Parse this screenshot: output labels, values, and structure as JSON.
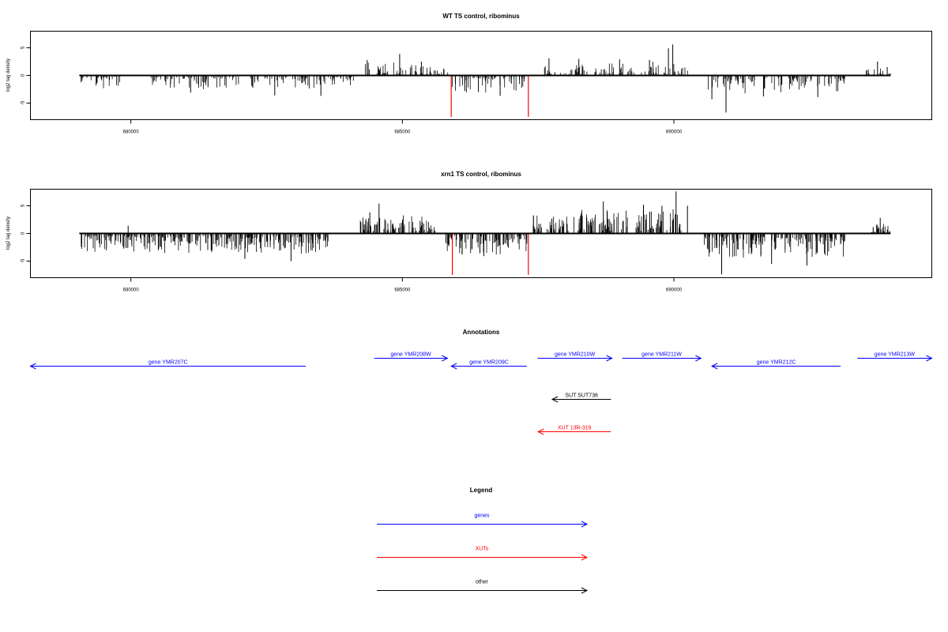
{
  "chart_data": [
    {
      "type": "bar",
      "title": "WT TS control, ribominus",
      "ylabel": "log2 tag density",
      "xlabel": "",
      "xlim": [
        678150,
        694750
      ],
      "ylim": [
        -8.0,
        8.0
      ],
      "xticks": [
        680000,
        685000,
        690000
      ],
      "xtick_labels": [
        "680000",
        "685000",
        "690000"
      ],
      "yticks": [
        -5,
        0,
        5
      ],
      "ytick_labels": [
        "-5",
        "0",
        "5"
      ],
      "baseline": {
        "x_start": 679050,
        "x_end": 693990,
        "y": 0
      },
      "series": [
        {
          "segments": [
            [
              679050,
              679850,
              -1.6
            ],
            [
              680350,
              681200,
              -1.8
            ],
            [
              681200,
              682050,
              -1.7
            ],
            [
              682200,
              683300,
              -1.6
            ],
            [
              683300,
              684100,
              -1.5
            ],
            [
              684300,
              684900,
              1.6
            ],
            [
              684900,
              685400,
              1.5
            ],
            [
              685400,
              685850,
              1.2
            ],
            [
              685850,
              686700,
              -2.2
            ],
            [
              686700,
              687300,
              -1.9
            ],
            [
              687600,
              688400,
              1.3
            ],
            [
              688500,
              689300,
              1.6
            ],
            [
              689400,
              690250,
              1.8
            ],
            [
              690600,
              691400,
              -2.4
            ],
            [
              691400,
              692300,
              -2.1
            ],
            [
              692300,
              693150,
              -2.0
            ],
            [
              693500,
              693990,
              0.9
            ]
          ]
        },
        {
          "points": [
            [
              679100,
              -1.0
            ],
            [
              681100,
              -3.1
            ],
            [
              682650,
              -3.6
            ],
            [
              683500,
              -3.7
            ],
            [
              684350,
              2.8
            ],
            [
              684950,
              3.9
            ],
            [
              685350,
              2.5
            ],
            [
              686150,
              -2.8
            ],
            [
              686400,
              -3.0
            ],
            [
              686800,
              -3.7
            ],
            [
              687700,
              3.1
            ],
            [
              688250,
              3.0
            ],
            [
              689000,
              2.9
            ],
            [
              689550,
              2.8
            ],
            [
              689900,
              4.9
            ],
            [
              689980,
              5.6
            ],
            [
              690700,
              -4.3
            ],
            [
              690960,
              -6.7
            ],
            [
              691650,
              -3.8
            ],
            [
              692650,
              -3.9
            ],
            [
              693750,
              2.5
            ],
            [
              693930,
              1.5
            ]
          ]
        },
        {
          "name": "",
          "color": "#ff0000",
          "points": [
            [
              685900,
              -7.5
            ],
            [
              687320,
              -7.5
            ]
          ]
        }
      ]
    },
    {
      "type": "bar",
      "title": "xrn1 TS control, ribominus",
      "ylabel": "log2 tag density",
      "xlabel": "",
      "xlim": [
        678150,
        694750
      ],
      "ylim": [
        -8.0,
        8.0
      ],
      "xticks": [
        680000,
        685000,
        690000
      ],
      "xtick_labels": [
        "680000",
        "685000",
        "690000"
      ],
      "yticks": [
        -5,
        0,
        5
      ],
      "ytick_labels": [
        "-5",
        "0",
        "5"
      ],
      "baseline": {
        "x_start": 679050,
        "x_end": 693990,
        "y": 0
      },
      "series": [
        {
          "segments": [
            [
              679050,
              679950,
              -2.2
            ],
            [
              679950,
              680900,
              -2.3
            ],
            [
              680900,
              681800,
              -2.4
            ],
            [
              681800,
              682700,
              -2.5
            ],
            [
              682700,
              683650,
              -2.4
            ],
            [
              684200,
              684800,
              2.0
            ],
            [
              684800,
              685600,
              2.2
            ],
            [
              685800,
              686600,
              -2.8
            ],
            [
              686600,
              687300,
              -2.6
            ],
            [
              687400,
              688300,
              2.5
            ],
            [
              688300,
              689150,
              2.8
            ],
            [
              689300,
              690150,
              2.9
            ],
            [
              690550,
              691300,
              -3.0
            ],
            [
              691300,
              692200,
              -2.8
            ],
            [
              692200,
              693150,
              -2.9
            ],
            [
              693600,
              693990,
              1.2
            ]
          ]
        },
        {
          "points": [
            [
              679950,
              1.4
            ],
            [
              682100,
              -4.6
            ],
            [
              682950,
              -5.0
            ],
            [
              684400,
              3.8
            ],
            [
              684570,
              5.4
            ],
            [
              686100,
              -3.8
            ],
            [
              686500,
              -4.1
            ],
            [
              688700,
              5.8
            ],
            [
              689440,
              5.2
            ],
            [
              689780,
              5.0
            ],
            [
              690040,
              7.6
            ],
            [
              690250,
              5.0
            ],
            [
              690880,
              -7.4
            ],
            [
              691800,
              -5.5
            ],
            [
              692450,
              -5.8
            ],
            [
              693800,
              2.8
            ]
          ]
        },
        {
          "name": "",
          "color": "#ff0000",
          "points": [
            [
              685920,
              -7.5
            ],
            [
              687320,
              -7.5
            ]
          ]
        }
      ]
    }
  ],
  "annotations": {
    "title": "Annotations",
    "features": [
      {
        "label": "gene YMR207C",
        "class": "gene",
        "direction": "reverse",
        "start": 678150,
        "end": 683220
      },
      {
        "label": "gene YMR208W",
        "class": "gene",
        "direction": "forward",
        "start": 684480,
        "end": 685830
      },
      {
        "label": "gene YMR209C",
        "class": "gene",
        "direction": "reverse",
        "start": 685900,
        "end": 687290
      },
      {
        "label": "gene YMR210W",
        "class": "gene",
        "direction": "forward",
        "start": 687490,
        "end": 688860
      },
      {
        "label": "gene YMR211W",
        "class": "gene",
        "direction": "forward",
        "start": 689050,
        "end": 690500
      },
      {
        "label": "gene YMR212C",
        "class": "gene",
        "direction": "reverse",
        "start": 690700,
        "end": 693070
      },
      {
        "label": "gene YMR213W",
        "class": "gene",
        "direction": "forward",
        "start": 693380,
        "end": 694750
      },
      {
        "label": "SUT SUT736",
        "class": "other",
        "direction": "reverse",
        "start": 687760,
        "end": 688840
      },
      {
        "label": "XUT 13R-316",
        "class": "XUT",
        "direction": "reverse",
        "start": 687500,
        "end": 688840
      }
    ]
  },
  "legend": {
    "title": "Legend",
    "items": [
      {
        "label": "genes",
        "color": "#0000ff"
      },
      {
        "label": "XUTs",
        "color": "#ff0000"
      },
      {
        "label": "other",
        "color": "#000000"
      }
    ]
  },
  "colors": {
    "gene": "#0000ff",
    "XUT": "#ff0000",
    "other": "#000000",
    "signal": "#000000",
    "cut": "#ff0000"
  }
}
